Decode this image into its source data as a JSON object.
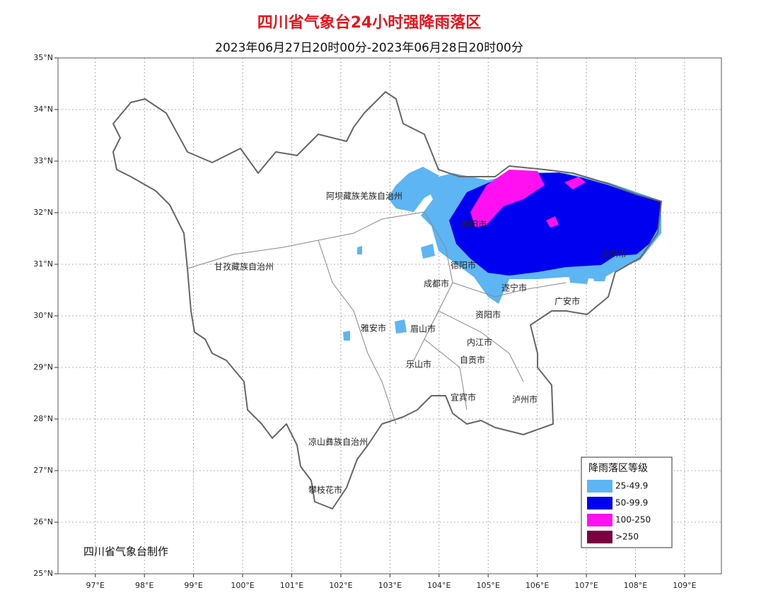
{
  "header": {
    "title": "四川省气象台24小时强降雨落区",
    "subtitle": "2023年06月27日20时00分-2023年06月28日20时00分"
  },
  "map": {
    "lat_range": [
      25,
      35
    ],
    "lon_range": [
      96.24,
      109.75
    ],
    "grid": true,
    "lat_ticks": [
      {
        "value": 25,
        "label": "25°N"
      },
      {
        "value": 26,
        "label": "26°N"
      },
      {
        "value": 27,
        "label": "27°N"
      },
      {
        "value": 28,
        "label": "28°N"
      },
      {
        "value": 29,
        "label": "29°N"
      },
      {
        "value": 30,
        "label": "30°N"
      },
      {
        "value": 31,
        "label": "31°N"
      },
      {
        "value": 32,
        "label": "32°N"
      },
      {
        "value": 33,
        "label": "33°N"
      },
      {
        "value": 34,
        "label": "34°N"
      },
      {
        "value": 35,
        "label": "35°N"
      }
    ],
    "lon_ticks": [
      {
        "value": 97,
        "label": "97°E"
      },
      {
        "value": 98,
        "label": "98°E"
      },
      {
        "value": 99,
        "label": "99°E"
      },
      {
        "value": 100,
        "label": "100°E"
      },
      {
        "value": 101,
        "label": "101°E"
      },
      {
        "value": 102,
        "label": "102°E"
      },
      {
        "value": 103,
        "label": "103°E"
      },
      {
        "value": 104,
        "label": "104°E"
      },
      {
        "value": 105,
        "label": "105°E"
      },
      {
        "value": 106,
        "label": "106°E"
      },
      {
        "value": 107,
        "label": "107°E"
      },
      {
        "value": 108,
        "label": "108°E"
      },
      {
        "value": 109,
        "label": "109°E"
      }
    ],
    "place_labels": [
      "阿坝藏族羌族自治州",
      "甘孜藏族自治州",
      "绵阳市",
      "德阳市",
      "成都市",
      "遂宁市",
      "资阳市",
      "雅安市",
      "眉山市",
      "内江市",
      "自贡市",
      "乐山市",
      "宜宾市",
      "泸州市",
      "凉山彝族自治州",
      "攀枝花市",
      "广安市",
      "达州市"
    ]
  },
  "legend": {
    "title": "降雨落区等级",
    "items": [
      {
        "label": "25-49.9",
        "color": "#5db5f3"
      },
      {
        "label": "50-99.9",
        "color": "#0000f0"
      },
      {
        "label": "100-250",
        "color": "#ff10f0"
      },
      {
        "label": ">250",
        "color": "#7a0040"
      }
    ]
  },
  "credit": "四川省气象台制作"
}
